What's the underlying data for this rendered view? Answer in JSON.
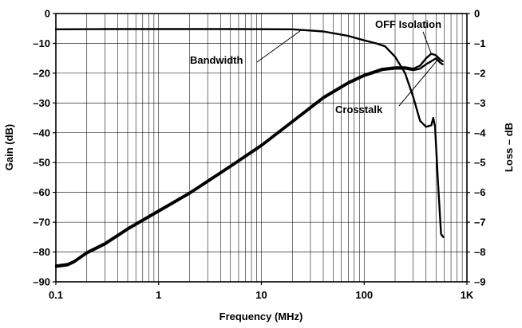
{
  "chart_data": {
    "type": "line",
    "xlabel": "Frequency (MHz)",
    "ylabel": "Gain (dB)",
    "y2label": "Loss – dB",
    "xscale": "log",
    "xlim": [
      0.1,
      1000
    ],
    "ylim": [
      -90,
      0
    ],
    "y2lim": [
      -9,
      0
    ],
    "grid": true,
    "x_ticks": [
      {
        "value": 0.1,
        "label": "0.1"
      },
      {
        "value": 1,
        "label": "1"
      },
      {
        "value": 10,
        "label": "10"
      },
      {
        "value": 100,
        "label": "100"
      },
      {
        "value": 1000,
        "label": "1K"
      }
    ],
    "y_ticks": [
      {
        "value": 0,
        "label": "0"
      },
      {
        "value": -10,
        "label": "–10"
      },
      {
        "value": -20,
        "label": "–20"
      },
      {
        "value": -30,
        "label": "–30"
      },
      {
        "value": -40,
        "label": "–40"
      },
      {
        "value": -50,
        "label": "–50"
      },
      {
        "value": -60,
        "label": "–60"
      },
      {
        "value": -70,
        "label": "–70"
      },
      {
        "value": -80,
        "label": "–80"
      },
      {
        "value": -90,
        "label": "–90"
      }
    ],
    "y2_ticks": [
      {
        "value": 0,
        "label": "0"
      },
      {
        "value": -1,
        "label": "–1"
      },
      {
        "value": -2,
        "label": "–2"
      },
      {
        "value": -3,
        "label": "–3"
      },
      {
        "value": -4,
        "label": "–4"
      },
      {
        "value": -5,
        "label": "–5"
      },
      {
        "value": -6,
        "label": "–6"
      },
      {
        "value": -7,
        "label": "–7"
      },
      {
        "value": -8,
        "label": "–8"
      },
      {
        "value": -9,
        "label": "–9"
      }
    ],
    "series": [
      {
        "name": "Bandwidth",
        "axis": "right",
        "points": [
          [
            0.1,
            -0.53
          ],
          [
            0.3,
            -0.52
          ],
          [
            1,
            -0.52
          ],
          [
            5,
            -0.52
          ],
          [
            20,
            -0.53
          ],
          [
            40,
            -0.6
          ],
          [
            70,
            -0.75
          ],
          [
            100,
            -0.9
          ],
          [
            130,
            -1.0
          ],
          [
            160,
            -1.1
          ],
          [
            200,
            -1.45
          ],
          [
            250,
            -2.0
          ],
          [
            300,
            -2.8
          ],
          [
            350,
            -3.6
          ],
          [
            400,
            -3.8
          ],
          [
            450,
            -3.75
          ],
          [
            470,
            -3.5
          ],
          [
            490,
            -3.8
          ],
          [
            520,
            -5.5
          ],
          [
            560,
            -7.4
          ],
          [
            590,
            -7.5
          ]
        ]
      },
      {
        "name": "OFF Isolation",
        "axis": "left",
        "points": [
          [
            0.1,
            -84.5
          ],
          [
            0.13,
            -84
          ],
          [
            0.15,
            -83
          ],
          [
            0.2,
            -80
          ],
          [
            0.3,
            -77
          ],
          [
            0.5,
            -72
          ],
          [
            1,
            -66
          ],
          [
            2,
            -60
          ],
          [
            5,
            -51
          ],
          [
            10,
            -44
          ],
          [
            20,
            -36
          ],
          [
            40,
            -28
          ],
          [
            70,
            -23
          ],
          [
            100,
            -20.5
          ],
          [
            150,
            -18.5
          ],
          [
            200,
            -18
          ],
          [
            250,
            -18
          ],
          [
            300,
            -18.5
          ],
          [
            350,
            -17.5
          ],
          [
            400,
            -15
          ],
          [
            450,
            -13.5
          ],
          [
            500,
            -14
          ],
          [
            550,
            -15.5
          ],
          [
            580,
            -16
          ]
        ]
      },
      {
        "name": "Crosstalk",
        "axis": "left",
        "points": [
          [
            0.1,
            -85
          ],
          [
            0.13,
            -84.5
          ],
          [
            0.15,
            -83.5
          ],
          [
            0.2,
            -80.5
          ],
          [
            0.3,
            -77.5
          ],
          [
            0.5,
            -72.5
          ],
          [
            1,
            -66.5
          ],
          [
            2,
            -60.5
          ],
          [
            5,
            -51.5
          ],
          [
            10,
            -44.5
          ],
          [
            20,
            -36.5
          ],
          [
            40,
            -28.5
          ],
          [
            70,
            -23.5
          ],
          [
            100,
            -21
          ],
          [
            150,
            -19
          ],
          [
            200,
            -18.5
          ],
          [
            250,
            -18.5
          ],
          [
            300,
            -19
          ],
          [
            350,
            -18.5
          ],
          [
            400,
            -17
          ],
          [
            450,
            -16
          ],
          [
            500,
            -15
          ],
          [
            550,
            -16.5
          ],
          [
            580,
            -17
          ]
        ]
      }
    ],
    "annotations": [
      {
        "text": "OFF Isolation",
        "target_series": "OFF Isolation",
        "at": [
          450,
          -13.5
        ]
      },
      {
        "text": "Bandwidth",
        "target_series": "Bandwidth",
        "at": [
          25,
          -0.53
        ]
      },
      {
        "text": "Crosstalk",
        "target_series": "Crosstalk",
        "at": [
          520,
          -15.5
        ]
      }
    ]
  }
}
